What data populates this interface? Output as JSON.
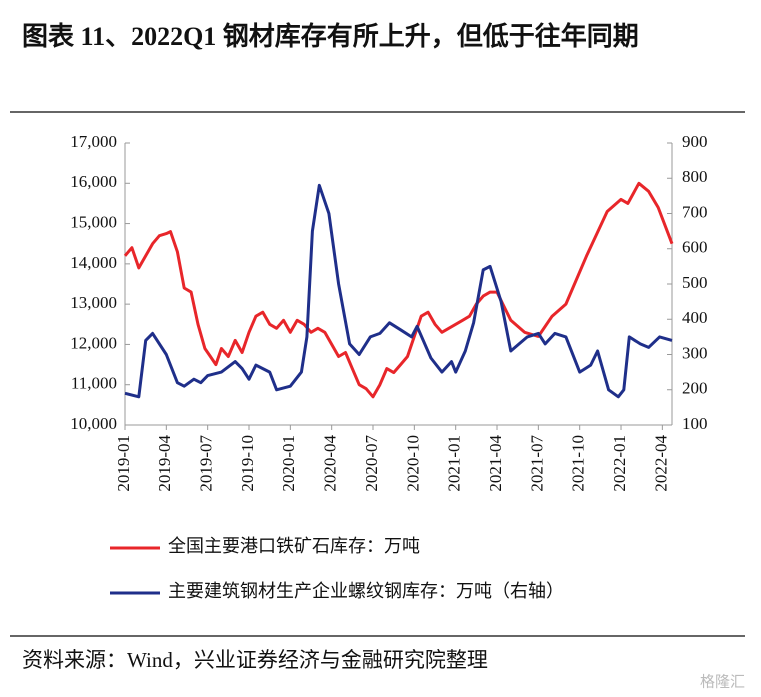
{
  "chart_data": {
    "type": "line",
    "title": "图表 11、2022Q1 钢材库存有所上升，但低于往年同期",
    "xlim": [
      0,
      39.7
    ],
    "xticks": [
      {
        "value": 0,
        "label": "2019-01"
      },
      {
        "value": 3,
        "label": "2019-04"
      },
      {
        "value": 6,
        "label": "2019-07"
      },
      {
        "value": 9,
        "label": "2019-10"
      },
      {
        "value": 12,
        "label": "2020-01"
      },
      {
        "value": 15,
        "label": "2020-04"
      },
      {
        "value": 18,
        "label": "2020-07"
      },
      {
        "value": 21,
        "label": "2020-10"
      },
      {
        "value": 24,
        "label": "2021-01"
      },
      {
        "value": 27,
        "label": "2021-04"
      },
      {
        "value": 30,
        "label": "2021-07"
      },
      {
        "value": 33,
        "label": "2021-10"
      },
      {
        "value": 36,
        "label": "2022-01"
      },
      {
        "value": 39,
        "label": "2022-04"
      }
    ],
    "ylim": [
      10000,
      17000
    ],
    "yticks": [
      {
        "value": 10000,
        "label": "10,000"
      },
      {
        "value": 11000,
        "label": "11,000"
      },
      {
        "value": 12000,
        "label": "12,000"
      },
      {
        "value": 13000,
        "label": "13,000"
      },
      {
        "value": 14000,
        "label": "14,000"
      },
      {
        "value": 15000,
        "label": "15,000"
      },
      {
        "value": 16000,
        "label": "16,000"
      },
      {
        "value": 17000,
        "label": "17,000"
      }
    ],
    "y2lim": [
      100,
      900
    ],
    "y2ticks": [
      100,
      200,
      300,
      400,
      500,
      600,
      700,
      800,
      900
    ],
    "series": [
      {
        "name": "全国主要港口铁矿石库存：万吨",
        "color": "#e8262a",
        "x": [
          0,
          0.5,
          1,
          2,
          2.5,
          3,
          3.3,
          3.8,
          4.3,
          4.8,
          5.3,
          5.8,
          6.2,
          6.6,
          7,
          7.5,
          8,
          8.5,
          9,
          9.5,
          10,
          10.5,
          11,
          11.5,
          12,
          12.5,
          13,
          13.5,
          14,
          14.5,
          15,
          15.5,
          16,
          16.5,
          17,
          17.5,
          18,
          18.5,
          19,
          19.5,
          20,
          20.5,
          21,
          21.5,
          22,
          22.5,
          23,
          23.5,
          24,
          24.5,
          25,
          25.5,
          26,
          26.5,
          27,
          28,
          29,
          30,
          31,
          32,
          33.5,
          35,
          36,
          36.5,
          37.3,
          38,
          38.7,
          39.7
        ],
        "values": [
          14200,
          14400,
          13900,
          14500,
          14700,
          14750,
          14800,
          14300,
          13400,
          13300,
          12500,
          11900,
          11700,
          11500,
          11900,
          11700,
          12100,
          11800,
          12300,
          12700,
          12800,
          12500,
          12400,
          12600,
          12300,
          12600,
          12500,
          12300,
          12400,
          12300,
          12000,
          11700,
          11800,
          11400,
          11000,
          10900,
          10700,
          11000,
          11400,
          11300,
          11500,
          11700,
          12200,
          12700,
          12800,
          12500,
          12300,
          12400,
          12500,
          12600,
          12700,
          13000,
          13200,
          13300,
          13300,
          12600,
          12300,
          12200,
          12700,
          13000,
          14200,
          15300,
          15600,
          15500,
          16000,
          15800,
          15400,
          14500
        ]
      },
      {
        "name": "主要建筑钢材生产企业螺纹钢库存：万吨（右轴）",
        "color": "#1f2f8a",
        "axis": "y2",
        "x": [
          0,
          1,
          1.5,
          2,
          3,
          3.8,
          4.3,
          5,
          5.5,
          6,
          7,
          8,
          8.5,
          9,
          9.5,
          10.5,
          11,
          12,
          12.8,
          13.2,
          13.6,
          14.1,
          14.8,
          15.5,
          16.3,
          17,
          17.8,
          18.5,
          19.2,
          20,
          20.8,
          21.2,
          22.2,
          23,
          23.7,
          24,
          24.7,
          25.3,
          26,
          26.5,
          27.3,
          28,
          28.6,
          29.2,
          30,
          30.5,
          31.2,
          32,
          33,
          33.8,
          34.3,
          35.1,
          35.8,
          36.2,
          36.6,
          37.4,
          38,
          38.8,
          39.7
        ],
        "values": [
          190,
          180,
          340,
          360,
          300,
          220,
          210,
          230,
          220,
          240,
          250,
          280,
          260,
          230,
          270,
          250,
          200,
          210,
          250,
          350,
          650,
          780,
          700,
          500,
          330,
          300,
          350,
          360,
          390,
          370,
          350,
          380,
          290,
          250,
          280,
          250,
          310,
          390,
          540,
          550,
          450,
          310,
          330,
          350,
          360,
          330,
          360,
          350,
          250,
          270,
          310,
          200,
          180,
          200,
          350,
          330,
          320,
          350,
          340
        ]
      }
    ],
    "source": "资料来源：Wind，兴业证券经济与金融研究院整理",
    "watermark": "格隆汇"
  }
}
